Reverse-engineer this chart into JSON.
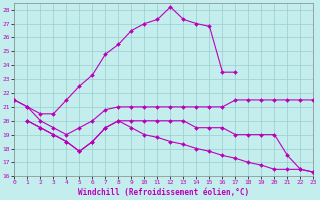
{
  "xlabel": "Windchill (Refroidissement éolien,°C)",
  "xlim": [
    0,
    23
  ],
  "ylim": [
    16,
    28.5
  ],
  "yticks": [
    16,
    17,
    18,
    19,
    20,
    21,
    22,
    23,
    24,
    25,
    26,
    27,
    28
  ],
  "xticks": [
    0,
    1,
    2,
    3,
    4,
    5,
    6,
    7,
    8,
    9,
    10,
    11,
    12,
    13,
    14,
    15,
    16,
    17,
    18,
    19,
    20,
    21,
    22,
    23
  ],
  "bg_color": "#c4eeee",
  "grid_color": "#99cccc",
  "line_color": "#bb00bb",
  "lines": [
    {
      "x": [
        0,
        1,
        2,
        3,
        4,
        5,
        6,
        7,
        8,
        9,
        10,
        11,
        12,
        13,
        14,
        15,
        16,
        17
      ],
      "y": [
        21.5,
        21.0,
        20.5,
        20.5,
        21.5,
        22.5,
        23.3,
        24.8,
        25.5,
        26.5,
        27.0,
        27.3,
        28.2,
        27.3,
        27.0,
        26.8,
        23.5,
        23.5
      ]
    },
    {
      "x": [
        0,
        1,
        2,
        3,
        4,
        5,
        6,
        7,
        8,
        9,
        10,
        11,
        12,
        13,
        14,
        15,
        16,
        17,
        18,
        19,
        20,
        21,
        22,
        23
      ],
      "y": [
        21.5,
        21.0,
        20.0,
        19.5,
        19.0,
        19.5,
        20.0,
        20.8,
        21.0,
        21.0,
        21.0,
        21.0,
        21.0,
        21.0,
        21.0,
        21.0,
        21.0,
        21.5,
        21.5,
        21.5,
        21.5,
        21.5,
        21.5,
        21.5
      ]
    },
    {
      "x": [
        1,
        2,
        3,
        4,
        5,
        6,
        7,
        8,
        9,
        10,
        11,
        12,
        13,
        14,
        15,
        16,
        17,
        18,
        19,
        20,
        21,
        22,
        23
      ],
      "y": [
        20.0,
        19.5,
        19.0,
        18.5,
        17.8,
        18.5,
        19.5,
        20.0,
        20.0,
        20.0,
        20.0,
        20.0,
        20.0,
        19.5,
        19.5,
        19.5,
        19.0,
        19.0,
        19.0,
        19.0,
        17.5,
        16.5,
        16.3
      ]
    },
    {
      "x": [
        1,
        2,
        3,
        4,
        5,
        6,
        7,
        8,
        9,
        10,
        11,
        12,
        13,
        14,
        15,
        16,
        17,
        18,
        19,
        20,
        21,
        22,
        23
      ],
      "y": [
        20.0,
        19.5,
        19.0,
        18.5,
        17.8,
        18.5,
        19.5,
        20.0,
        19.5,
        19.0,
        18.8,
        18.5,
        18.3,
        18.0,
        17.8,
        17.5,
        17.3,
        17.0,
        16.8,
        16.5,
        16.5,
        16.5,
        16.3
      ]
    }
  ],
  "marker": "D",
  "markersize": 2.0,
  "linewidth": 0.8,
  "tick_fontsize": 4.5,
  "label_fontsize": 5.5
}
